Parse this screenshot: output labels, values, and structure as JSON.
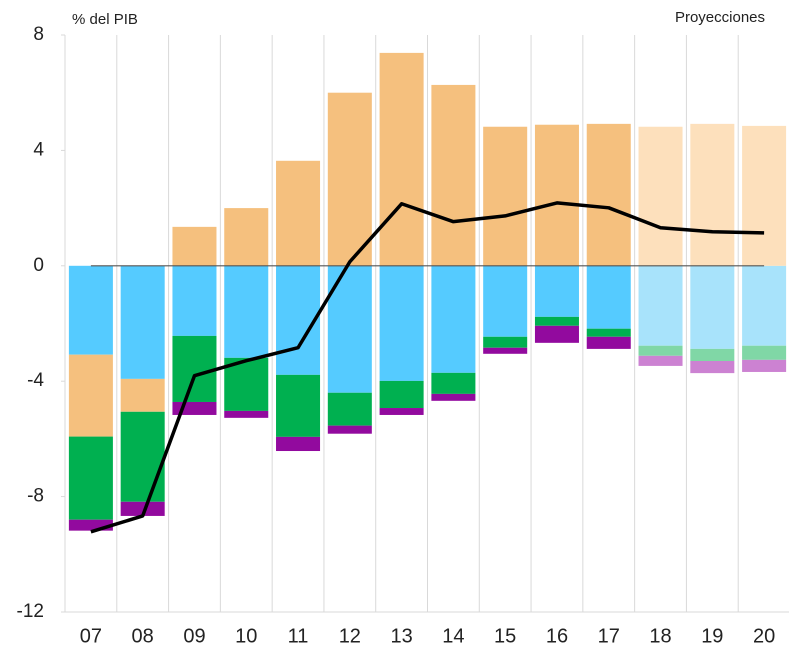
{
  "chart_data": {
    "type": "bar",
    "y_label": "% del PIB",
    "annotation": "Proyecciones",
    "categories": [
      "07",
      "08",
      "09",
      "10",
      "11",
      "12",
      "13",
      "14",
      "15",
      "16",
      "17",
      "18",
      "19",
      "20"
    ],
    "stacked": true,
    "series": [
      {
        "type": "bar",
        "color": "#55cbff",
        "colors": [
          "#55cbff",
          "#55cbff",
          "#55cbff",
          "#55cbff",
          "#55cbff",
          "#55cbff",
          "#55cbff",
          "#55cbff",
          "#55cbff",
          "#55cbff",
          "#55cbff",
          "#a8e3fb",
          "#a8e3fb",
          "#a8e3fb"
        ],
        "values": [
          -3.08,
          -3.92,
          -2.43,
          -3.19,
          -3.78,
          -4.4,
          -3.99,
          -3.71,
          -2.46,
          -1.77,
          -2.18,
          -2.77,
          -2.88,
          -2.77
        ]
      },
      {
        "type": "bar",
        "color": "#f5c07e",
        "colors": [
          "#f5c07e",
          "#f5c07e",
          "#f5c07e",
          "#f5c07e",
          "#f5c07e",
          "#f5c07e",
          "#f5c07e",
          "#f5c07e",
          "#f5c07e",
          "#f5c07e",
          "#f5c07e",
          "#fde0bc",
          "#fde0bc",
          "#fde0bc"
        ],
        "values": [
          -2.84,
          -1.14,
          1.35,
          2.0,
          3.64,
          6.0,
          7.38,
          6.27,
          4.82,
          4.89,
          4.92,
          4.82,
          4.92,
          4.85
        ]
      },
      {
        "type": "bar",
        "color": "#00b050",
        "colors": [
          "#00b050",
          "#00b050",
          "#00b050",
          "#00b050",
          "#00b050",
          "#00b050",
          "#00b050",
          "#00b050",
          "#00b050",
          "#00b050",
          "#00b050",
          "#80d7a6",
          "#80d7a6",
          "#80d7a6"
        ],
        "values": [
          -2.88,
          -3.12,
          -2.29,
          -1.84,
          -2.15,
          -1.14,
          -0.94,
          -0.73,
          -0.38,
          -0.31,
          -0.28,
          -0.35,
          -0.42,
          -0.49
        ]
      },
      {
        "type": "bar",
        "color": "#920a9e",
        "colors": [
          "#920a9e",
          "#920a9e",
          "#920a9e",
          "#920a9e",
          "#920a9e",
          "#920a9e",
          "#920a9e",
          "#920a9e",
          "#920a9e",
          "#920a9e",
          "#920a9e",
          "#cc82d2",
          "#cc82d2",
          "#cc82d2"
        ],
        "values": [
          -0.38,
          -0.49,
          -0.45,
          -0.24,
          -0.49,
          -0.28,
          -0.24,
          -0.24,
          -0.21,
          -0.59,
          -0.42,
          -0.35,
          -0.42,
          -0.42
        ]
      },
      {
        "type": "line",
        "color": "#000000",
        "values": [
          -9.22,
          -8.67,
          -3.81,
          -3.29,
          -2.84,
          0.14,
          2.15,
          1.53,
          1.73,
          2.18,
          2.01,
          1.32,
          1.18,
          1.14
        ]
      }
    ],
    "ylim": [
      -12,
      8
    ],
    "yticks": [
      -12,
      -8,
      -4,
      0,
      4,
      8
    ]
  }
}
